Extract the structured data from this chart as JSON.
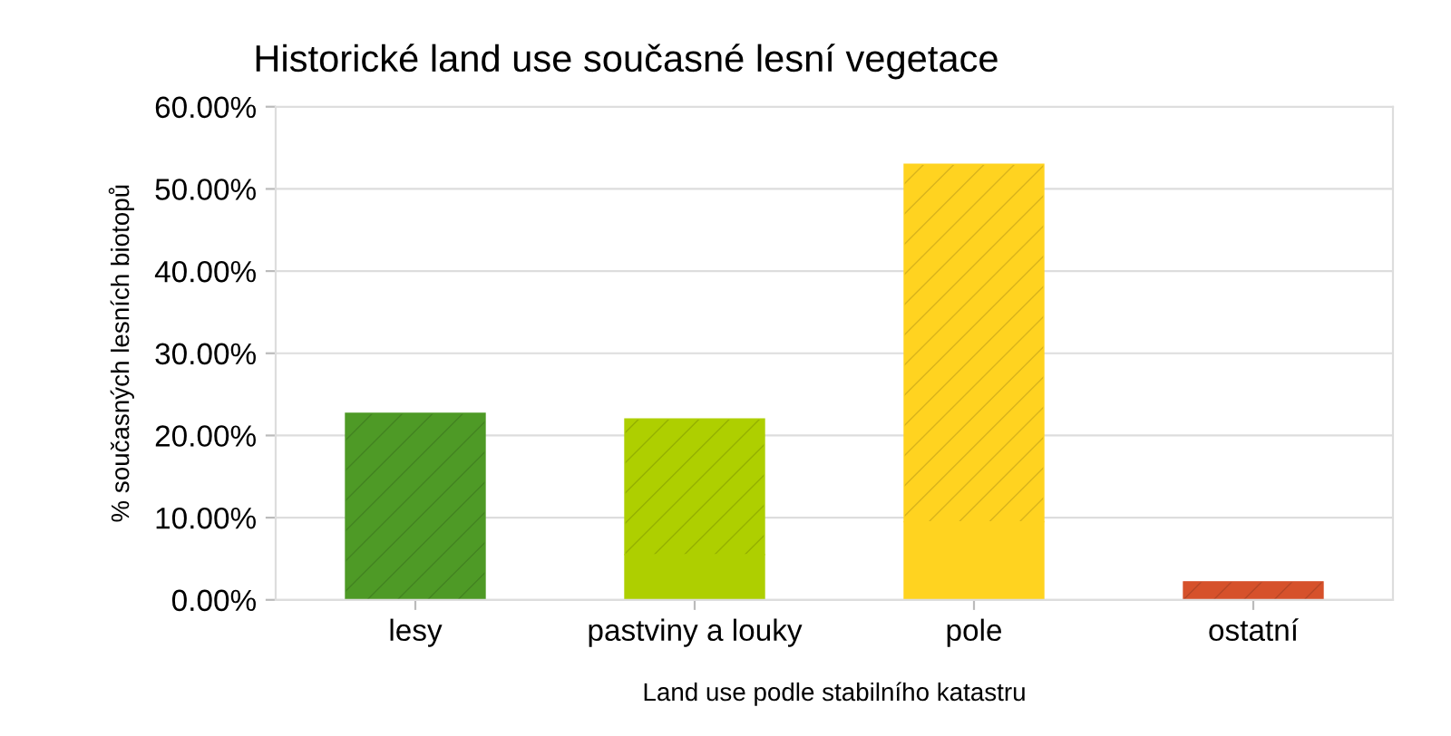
{
  "chart_data": {
    "type": "bar",
    "title": "Historické land use současné lesní vegetace",
    "xlabel": "Land use podle stabilního katastru",
    "ylabel": "% současných lesních biotopů",
    "categories": [
      "lesy",
      "pastviny a louky",
      "pole",
      "ostatní"
    ],
    "stacked": true,
    "series": [
      {
        "colors": [
          "#4e9a26",
          "#aecf00",
          "#ffd320",
          "#d6512b"
        ],
        "values": [
          null,
          5.5,
          9.5,
          null
        ]
      },
      {
        "colors": [
          "#4e9a26",
          "#aecf00",
          "#ffd320",
          "#d6512b"
        ],
        "values": [
          22.7,
          16.5,
          43.5,
          2.2
        ]
      }
    ],
    "ylim": [
      0,
      60
    ],
    "yticks": [
      {
        "value": 0,
        "label": "0.00%"
      },
      {
        "value": 10,
        "label": "10.00%"
      },
      {
        "value": 20,
        "label": "20.00%"
      },
      {
        "value": 30,
        "label": "30.00%"
      },
      {
        "value": 40,
        "label": "40.00%"
      },
      {
        "value": 50,
        "label": "50.00%"
      },
      {
        "value": 60,
        "label": "60.00%"
      }
    ],
    "grid": "y",
    "legend": false
  }
}
